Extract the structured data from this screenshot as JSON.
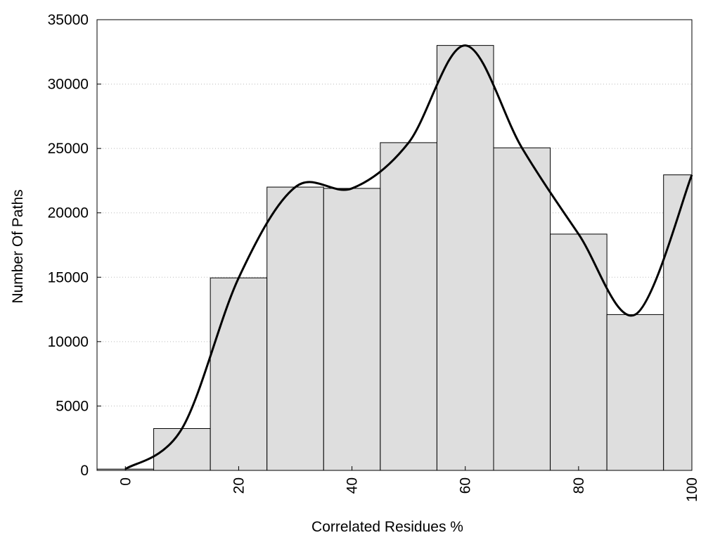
{
  "chart_data": {
    "type": "bar",
    "title": "",
    "xlabel": "Correlated Residues %",
    "ylabel": "Number Of Paths",
    "x_ticks": [
      "0",
      "20",
      "40",
      "60",
      "80",
      "100"
    ],
    "y_ticks": [
      "0",
      "5000",
      "10000",
      "15000",
      "20000",
      "25000",
      "30000",
      "35000"
    ],
    "xlim": [
      -5,
      100
    ],
    "ylim": [
      0,
      35000
    ],
    "grid": "horizontal-dotted",
    "bar_color": "#dedede",
    "bar_edge_color": "#000000",
    "curve_color": "#000000",
    "series": [
      {
        "kind": "histogram",
        "bins": [
          {
            "x_start": -5,
            "x_end": 5,
            "value": 100
          },
          {
            "x_start": 5,
            "x_end": 15,
            "value": 3250
          },
          {
            "x_start": 15,
            "x_end": 25,
            "value": 14950
          },
          {
            "x_start": 25,
            "x_end": 35,
            "value": 22000
          },
          {
            "x_start": 35,
            "x_end": 45,
            "value": 21900
          },
          {
            "x_start": 45,
            "x_end": 55,
            "value": 25450
          },
          {
            "x_start": 55,
            "x_end": 65,
            "value": 33000
          },
          {
            "x_start": 65,
            "x_end": 75,
            "value": 25050
          },
          {
            "x_start": 75,
            "x_end": 85,
            "value": 18350
          },
          {
            "x_start": 85,
            "x_end": 95,
            "value": 12100
          },
          {
            "x_start": 95,
            "x_end": 100,
            "value": 22950
          }
        ]
      },
      {
        "kind": "smooth-line",
        "points": [
          {
            "x": 0,
            "y": 100
          },
          {
            "x": 10,
            "y": 3250
          },
          {
            "x": 20,
            "y": 14950
          },
          {
            "x": 30,
            "y": 22000
          },
          {
            "x": 40,
            "y": 21900
          },
          {
            "x": 50,
            "y": 25450
          },
          {
            "x": 60,
            "y": 33000
          },
          {
            "x": 70,
            "y": 25050
          },
          {
            "x": 80,
            "y": 18350
          },
          {
            "x": 90,
            "y": 12100
          },
          {
            "x": 100,
            "y": 22950
          }
        ]
      }
    ]
  }
}
